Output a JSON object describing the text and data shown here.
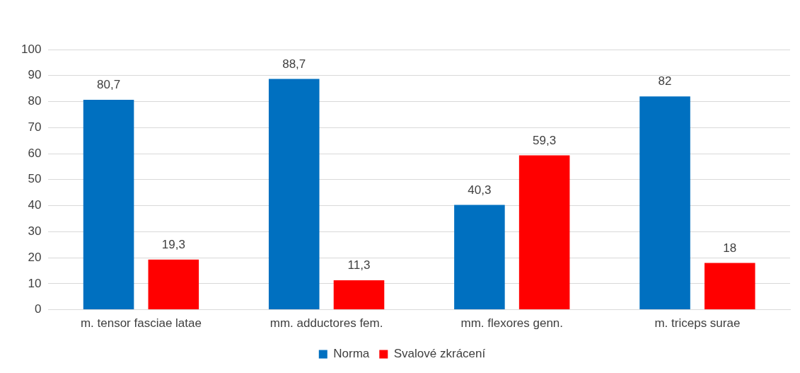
{
  "chart_data": {
    "type": "bar",
    "categories": [
      "m. tensor fasciae latae",
      "mm. adductores fem.",
      "mm. flexores genn.",
      "m. triceps surae"
    ],
    "series": [
      {
        "name": "Norma",
        "color": "#0070c0",
        "values": [
          80.7,
          88.7,
          40.3,
          82
        ],
        "value_labels": [
          "80,7",
          "88,7",
          "40,3",
          "82"
        ]
      },
      {
        "name": "Svalové zkrácení",
        "color": "#ff0000",
        "values": [
          19.3,
          11.3,
          59.3,
          18
        ],
        "value_labels": [
          "19,3",
          "11,3",
          "59,3",
          "18"
        ]
      }
    ],
    "ylim": [
      0,
      100
    ],
    "yticks": [
      0,
      10,
      20,
      30,
      40,
      50,
      60,
      70,
      80,
      90,
      100
    ],
    "grid": "y",
    "legend": "bottom"
  }
}
